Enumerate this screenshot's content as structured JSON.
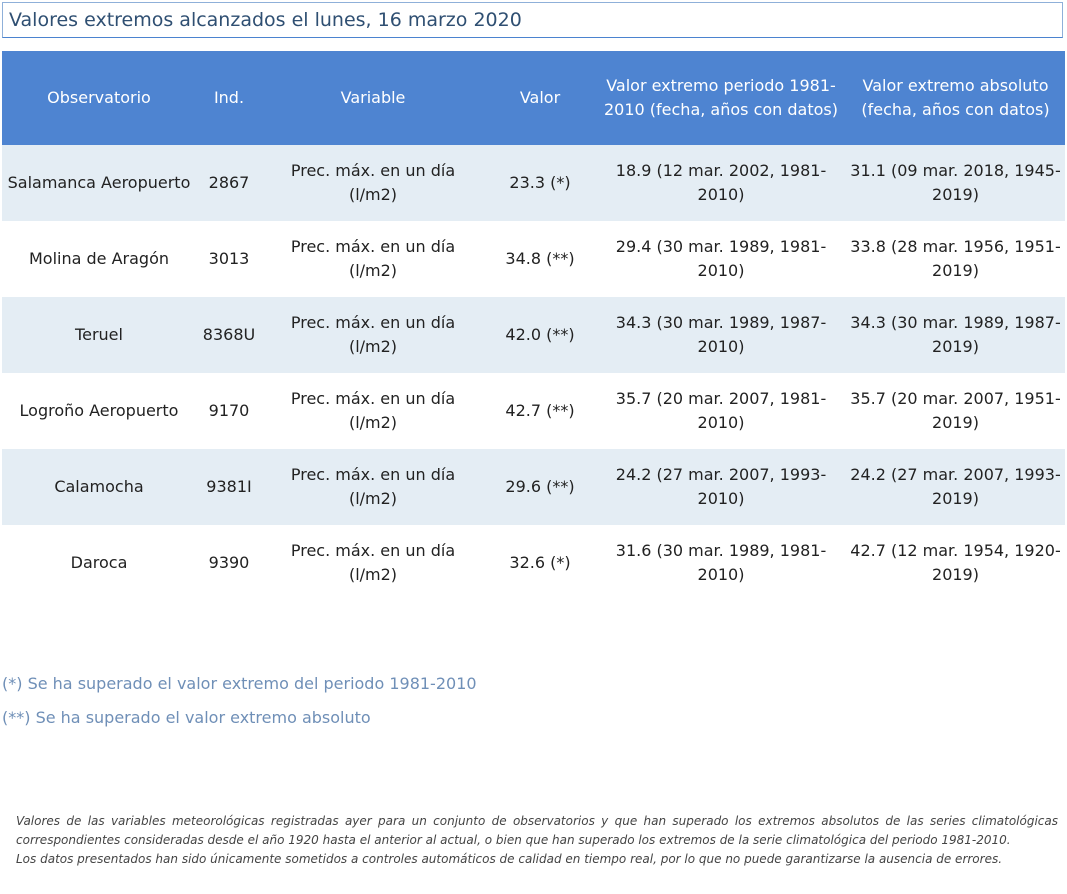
{
  "header": {
    "title": "Valores extremos alcanzados el lunes, 16 marzo 2020"
  },
  "table": {
    "columns": {
      "observatorio": "Observatorio",
      "ind": "Ind.",
      "variable": "Variable",
      "valor": "Valor",
      "periodo": "Valor extremo periodo 1981-2010 (fecha, años con datos)",
      "absoluto": "Valor extremo absoluto (fecha, años con datos)"
    },
    "rows": [
      {
        "observatorio": "Salamanca Aeropuerto",
        "ind": "2867",
        "variable": "Prec. máx. en un día (l/m2)",
        "valor": "23.3 (*)",
        "periodo": "18.9 (12 mar. 2002, 1981-2010)",
        "absoluto": "31.1 (09 mar. 2018, 1945-2019)"
      },
      {
        "observatorio": "Molina de Aragón",
        "ind": "3013",
        "variable": "Prec. máx. en un día (l/m2)",
        "valor": "34.8 (**)",
        "periodo": "29.4 (30 mar. 1989, 1981-2010)",
        "absoluto": "33.8 (28 mar. 1956, 1951-2019)"
      },
      {
        "observatorio": "Teruel",
        "ind": "8368U",
        "variable": "Prec. máx. en un día (l/m2)",
        "valor": "42.0 (**)",
        "periodo": "34.3 (30 mar. 1989, 1987-2010)",
        "absoluto": "34.3 (30 mar. 1989, 1987-2019)"
      },
      {
        "observatorio": "Logroño Aeropuerto",
        "ind": "9170",
        "variable": "Prec. máx. en un día (l/m2)",
        "valor": "42.7 (**)",
        "periodo": "35.7 (20 mar. 2007, 1981-2010)",
        "absoluto": "35.7 (20 mar. 2007, 1951-2019)"
      },
      {
        "observatorio": "Calamocha",
        "ind": "9381I",
        "variable": "Prec. máx. en un día (l/m2)",
        "valor": "29.6 (**)",
        "periodo": "24.2 (27 mar. 2007, 1993-2010)",
        "absoluto": "24.2 (27 mar. 2007, 1993-2019)"
      },
      {
        "observatorio": "Daroca",
        "ind": "9390",
        "variable": "Prec. máx. en un día (l/m2)",
        "valor": "32.6 (*)",
        "periodo": "31.6 (30 mar. 1989, 1981-2010)",
        "absoluto": "42.7 (12 mar. 1954, 1920-2019)"
      }
    ]
  },
  "notes": {
    "single_star": "(*) Se ha superado el valor extremo del periodo 1981-2010",
    "double_star": "(**) Se ha superado el valor extremo absoluto"
  },
  "footnote": {
    "paragraph1": "Valores de las variables meteorológicas registradas ayer para un conjunto de observatorios y que han superado los extremos absolutos de las series climatológicas correspondientes consideradas desde el año 1920 hasta el anterior al actual, o bien que han superado los extremos de la serie climatológica del periodo 1981-2010.",
    "paragraph2": "Los datos presentados han sido únicamente sometidos a controles automáticos de calidad en tiempo real, por lo que no puede garantizarse la ausencia de errores."
  },
  "colors": {
    "header_bg": "#4e84d1",
    "row_alt_bg": "#e4edf4",
    "title_text": "#2f4f72",
    "note_text": "#6f8fb7"
  }
}
